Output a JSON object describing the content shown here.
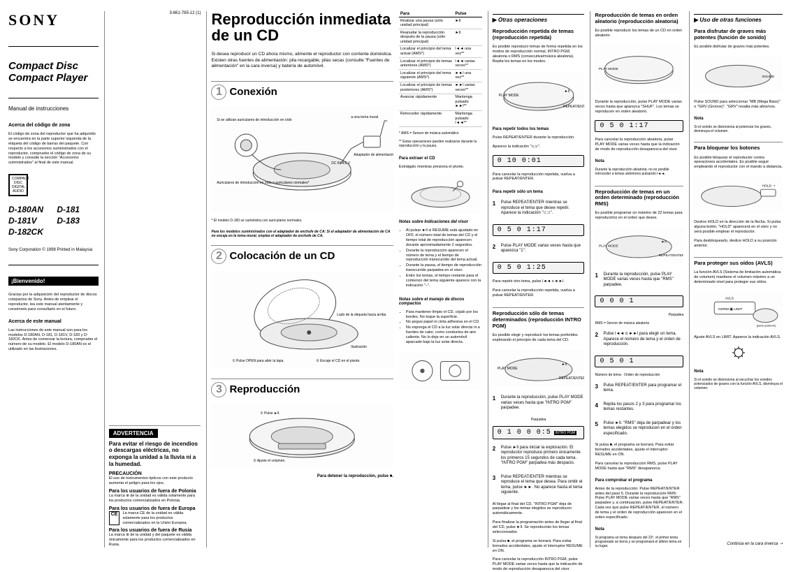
{
  "meta": {
    "docnum": "3-861-765-12 (1)"
  },
  "brand": "SONY",
  "product": {
    "line1": "Compact Disc",
    "line2": "Compact Player"
  },
  "manual_type": "Manual de instrucciones",
  "zone": {
    "title": "Acerca del código de zona",
    "body": "El código de zona del reproductor que ha adquirido se encuentra en la parte superior izquierda de la etiqueta del código de barras del paquete. Con respecto a los accesorios suministrados con el reproductor, compruebe el código de zona de su modelo y consulte la sección \"Accesorios suministrados\" al final de este manual."
  },
  "disc_badge": "COMPACT DISC DIGITAL AUDIO",
  "models": [
    "D-180AN",
    "D-181",
    "D-181V",
    "D-183",
    "D-182CK"
  ],
  "copyright": "Sony Corporation © 1998 Printed in Malaysia",
  "welcome": {
    "banner": "¡Bienvenido!",
    "body": "Gracias por la adquisición del reproductor de discos compactos de Sony. Antes de emplear el reproductor, lea este manual atentamente y consérvelo para consultarlo en el futuro.",
    "about_title": "Acerca de este manual",
    "about_body": "Las instrucciones de este manual son para los modelos D-180AN, D-181, D-181V, D-183 y D-182CK. Antes de comenzar la lectura, compruebe el número de su modelo. El modelo D-180AN es el utilizado en las ilustraciones."
  },
  "warning": {
    "title": "ADVERTENCIA",
    "body": "Para evitar el riesgo de incendios o descargas eléctricas, no exponga la unidad a la lluvia ni a la humedad.",
    "precaution_title": "PRECAUCIÓN",
    "precaution_body": "El uso de instrumentos ópticos con este producto aumenta el peligro para los ojos.",
    "poland_title": "Para los usuarios de fuera de Polonia",
    "poland_body": "La marca ⊗ de la unidad es válida solamente para los productos comercializados en Polonia.",
    "europe_title": "Para los usuarios de fuera de Europa",
    "europe_body": "La marca CE de la unidad es válida solamente para los productos comercializados en la Unión Europea.",
    "russia_title": "Para los usuarios de fuera de Rusia",
    "russia_body": "La marca ⊗ de la unidad y del paquete es válida únicamente para los productos comercializados en Rusia."
  },
  "main_title": "Reproducción inmediata de un CD",
  "main_intro": "Si desea reproducir un CD ahora mismo, alimente el reproductor con corriente doméstica. Existen otras fuentes de alimentación: pila recargable, pilas secas (consulte \"Fuentes de alimentación\" en la cara inversa) y batería de automóvil.",
  "steps": {
    "s1": {
      "num": "1",
      "title": "Conexión",
      "labels": {
        "a": "Si se utilizan auriculares de introducción en oído",
        "b": "Auriculares de introducción en oído o auriculares normales*",
        "c": "a una toma mural",
        "d": "Adaptador de alimentación de CA",
        "e": "DC IN 4.5 V",
        "note": "* El modelo D-183 se suministra con auriculares normales.",
        "footer": "Para los modelos suministrados con el adaptador de enchufe de CA: Si el adaptador de alimentación de CA no encaja en la toma mural, emplee el adaptador de enchufe de CA."
      }
    },
    "s2": {
      "num": "2",
      "title": "Colocación de un CD",
      "labels": {
        "a": "Lado de la etiqueta hacia arriba",
        "b": "① Pulse OPEN para abrir la tapa.",
        "c": "② Encaje el CD en el pivote.",
        "d": "Ilustración"
      }
    },
    "s3": {
      "num": "3",
      "title": "Reproducción",
      "labels": {
        "a": "① Pulse ►ll.",
        "b": "② Ajuste el volumen.",
        "c": "Para detener la reproducción, pulse ■."
      }
    }
  },
  "optable": {
    "head": [
      "Para",
      "Pulse"
    ],
    "rows": [
      [
        "Realizar una pausa (sólo unidad principal)",
        "►ll"
      ],
      [
        "Reanudar la reproducción después de la pausa (sólo unidad principal)",
        "►ll"
      ],
      [
        "Localizar el principio del tema actual (AMS*)",
        "l◄◄ una vez**"
      ],
      [
        "Localizar el principio de temas anteriores (AMS*)",
        "l◄◄ varias veces**"
      ],
      [
        "Localizar el principio del tema siguiente (AMS*)",
        "►►l una vez**"
      ],
      [
        "Localizar el principio de temas posteriores (AMS*)",
        "►►l varias veces**"
      ],
      [
        "Avanzar rápidamente",
        "Mantenga pulsado ►►l**"
      ],
      [
        "Retroceder rápidamente",
        "Mantenga pulsado l◄◄**"
      ]
    ],
    "foot1": "* AMS = Sensor de música automático",
    "foot2": "** Estas operaciones pueden realizarse durante la reproducción y la pausa.",
    "eject_title": "Para extraer el CD",
    "eject_body": "Extráigalo mientras presiona el pivote.",
    "notes_title": "Notas sobre Indicaciones del visor",
    "notes": [
      "Al pulsar ►ll si RESUME está ajustado en OFF, el número total de temas del CD y el tiempo total de reproducción aparecen durante aproximadamente 2 segundos.",
      "Durante la reproducción aparecen el número de tema y el tiempo de reproducción transcurrido del tema actual.",
      "Durante la pausa, el tiempo de reproducción transcurrido parpadea en el visor.",
      "Entre los temas, el tiempo restante para el comienzo del tema siguiente aparece con la indicación \"–\"."
    ],
    "handling_title": "Notas sobre el manejo de discos compactos",
    "handling": [
      "Para mantener limpio el CD, cójalo por los bordes. No toque la superficie.",
      "No pegue papel ni cinta adhesiva en el CD.",
      "No exponga el CD a la luz solar directa ni a fuentes de calor, como conductos de aire caliente. No lo deje en un automóvil aparcado bajo la luz solar directa."
    ]
  },
  "other_ops": "Otras operaciones",
  "repeat": {
    "title": "Reproducción repetida de temas (reproducción repetida)",
    "intro": "Es posible reproducir temas de forma repetida en los modos de reproducción normal, INTRO PGM, aleatoria o RMS (consecutiva/música aleatoria). Repita los temas en los modos.",
    "all_title": "Para repetir todos los temas",
    "all_1": "Pulse REPEAT/ENTER durante la reproducción.",
    "all_2": "Aparece la indicación \"⊂⊃\".",
    "lcd1": "0 10 0:01",
    "cancel_all": "Para cancelar la reproducción repetida, vuelva a pulsar REPEAT/ENTER.",
    "one_title": "Para repetir sólo un tema",
    "one_s1": "Pulse REPEAT/ENTER mientras se reproduce el tema que desee repetir. Aparece la indicación \"⊂⊃\".",
    "lcd2": "0 5 0 1:17",
    "one_s2": "Pulse PLAY MODE varias veces hasta que aparezca \"1\".",
    "lcd3": "0 5 0 1:25",
    "one_nav": "Para repetir otro tema, pulse l◄◄ o ►►l.",
    "one_cancel": "Para cancelar la reproducción repetida, vuelva a pulsar REPEAT/ENTER."
  },
  "intro_pgm": {
    "title": "Reproducción sólo de temas determinados (reproducción INTRO PGM)",
    "intro": "Es posible elegir y reproducir los temas preferidos explorando el principio de cada tema del CD.",
    "s1": "Durante la reproducción, pulse PLAY MODE varias veces hasta que \"INTRO PGM\" parpadee.",
    "lbl1": "Parpadea",
    "lcd": "0 1 0 0 0:5",
    "lcd_banner": "INTRO PGM",
    "s2": "Pulse ►ll para iniciar la exploración. El reproductor reproduce primero únicamente los primeros 15 segundos de cada tema. \"INTRO PGM\" parpadea más despacio.",
    "s3": "Pulse REPEAT/ENTER mientras se reproduce el tema que desea. Para omitir el tema, pulse ►►. No aparece hasta el tema siguiente.",
    "end": "Al llegar al final del CD, \"INTRO PGM\" deja de parpadear y los temas elegidos se reproducen automáticamente.",
    "stop": "Para finalizar la programación antes de llegar al final del CD, pulse ►ll. Se reproducirán los temas seleccionados.",
    "resume": "Si pulsa ■, el programa se borrará. Para evitar borrados accidentales, ajuste el interruptor RESUME en ON.",
    "cancelpgm": "Para cancelar la reproducción INTRO PGM, pulse PLAY MODE varias veces hasta que la indicación de modo de reproducción desaparezca del visor."
  },
  "shuffle": {
    "title": "Reproducción de temas en orden aleatorio (reproducción aleatoria)",
    "intro": "Es posible reproducir los temas de un CD en orden aleatorio.",
    "step": "Durante la reproducción, pulse PLAY MODE varias veces hasta que aparezca \"SHUF\". Los temas se reproducen en orden aleatorio.",
    "lcd": "0 5 0 1:17",
    "cancel": "Para cancelar la reproducción aleatoria, pulse PLAY MODE varias veces hasta que la indicación de modo de reproducción desaparezca del visor.",
    "note_t": "Nota",
    "note": "Durante la reproducción aleatoria, no es posible retroceder a temas anteriores pulsando l◄◄."
  },
  "rms": {
    "title": "Reproducción de temas en un orden determinado (reproducción RMS)",
    "intro": "Es posible programar un máximo de 22 temas para reproducirlos en el orden que desee.",
    "s1": "Durante la reproducción, pulse PLAY MODE varias veces hasta que \"RMS\" parpadee.",
    "lcd1": "0 0 0 1",
    "lbl_a": "Parpadea",
    "foot": "RMS = Sensor de música aleatoria",
    "s2": "Pulse l◄◄ o ►►l para elegir un tema. Aparece el número de tema y el orden de reproducción.",
    "lcd2": "0 5 0 1",
    "lbl_b": "Número de tema · Orden de reproducción",
    "s3": "Pulse REPEAT/ENTER para programar el tema.",
    "s4": "Repita los pasos 2 y 3 para programar los temas restantes.",
    "s5": "Pulse ►ll. \"RMS\" deja de parpadear y los temas elegidos se reproducen en el orden especificado.",
    "resume": "Si pulsa ■, el programa se borrará. Para evitar borrados accidentales, ajuste el interruptor RESUME en ON.",
    "cancel": "Para cancelar la reproducción RMS, pulse PLAY MODE hasta que \"RMS\" desaparezca.",
    "check_title": "Para comprobar el programa",
    "check": "Antes de la reproducción: Pulse REPEAT/ENTER antes del paso 5. Durante la reproducción RMS: Pulse PLAY MODE varias veces hasta que \"RMS\" parpadee y, a continuación, pulse REPEAT/ENTER. Cada vez que pulse REPEAT/ENTER, el número de tema y el orden de reproducción aparecen en el orden especificado.",
    "note_t": "Nota",
    "note": "Si programa un tema después del 22º, el primer tema programado se borra y se programará el último tema en su lugar."
  },
  "other_fn": {
    "title": "Uso de otras funciones",
    "bass_title": "Para disfrutar de graves más potentes (función de sonido)",
    "bass_body": "Es posible disfrutar de graves más potentes.",
    "bass_step": "Pulse SOUND para seleccionar \"MB (Mega Bass)\" o \"GRV (Groove)\". \"GRV\" resalta más altos/vos.",
    "bass_note_t": "Nota",
    "bass_note": "Si el sonido se distorsiona al potenciar los graves, disminuya el volumen.",
    "lock_title": "Para bloquear los botones",
    "lock_body": "Es posible bloquear el reproductor contra operaciones accidentales. Es posible seguir empleando el reproductor con el mando a distancia.",
    "lock_step": "Deslice HOLD en la dirección de la flecha. Si pulsa alguna botón, \"HOLD\" aparecerá en el visor y no será posible emplear el reproductor.",
    "lock_unlock": "Para desbloquearlo, deslice HOLD a su posición anterior.",
    "avls_title": "Para proteger sus oídos (AVLS)",
    "avls_body": "La función AVLS (Sistema de limitación automática de volumen) mantiene el volumen máximo a un determinado nivel para proteger sus oídos.",
    "avls_step": "Ajuste AVLS en LIMIT. Aparece la indicación AVLS.",
    "avls_note_t": "Nota",
    "avls_note": "Si el sonido se distorsiona al escuchar los sonidos potenciados de graves con la función AVLS, disminuya el volumen.",
    "footer": "Continúa en la cara inversa ➝"
  }
}
